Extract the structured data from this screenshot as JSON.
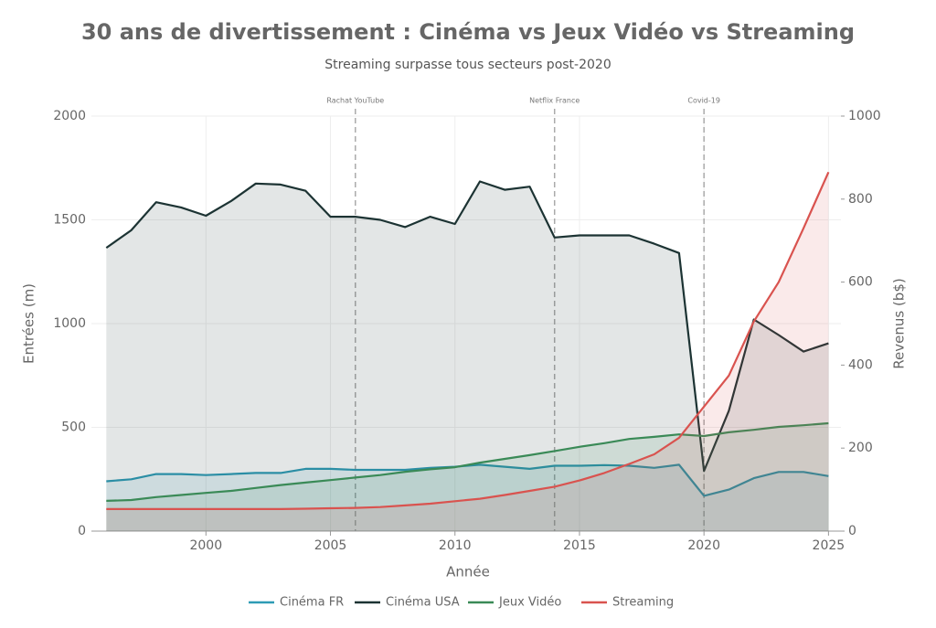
{
  "chart_data": {
    "type": "line",
    "title": "30 ans de divertissement : Cinéma vs Jeux Vidéo vs Streaming",
    "subtitle": "Streaming surpasse tous secteurs post-2020",
    "x_label": "Année",
    "y_label": "Entrées (m)",
    "y2_label": "Revenus (b$)",
    "x": [
      1996,
      1997,
      1998,
      1999,
      2000,
      2001,
      2002,
      2003,
      2004,
      2005,
      2006,
      2007,
      2008,
      2009,
      2010,
      2011,
      2012,
      2013,
      2014,
      2015,
      2016,
      2017,
      2018,
      2019,
      2020,
      2021,
      2022,
      2023,
      2024,
      2025
    ],
    "xlim": [
      1995.4,
      2025.5
    ],
    "xticks": [
      2000,
      2005,
      2010,
      2015,
      2020,
      2025
    ],
    "ylim": [
      0,
      2000
    ],
    "yticks": [
      0,
      500,
      1000,
      1500,
      2000
    ],
    "y2lim": [
      0,
      1000
    ],
    "y2ticks": [
      0,
      200,
      400,
      600,
      800,
      1000
    ],
    "grid": true,
    "fill": true,
    "legend": "bottom",
    "annotations": [
      {
        "x": 2006,
        "text": "Rachat YouTube"
      },
      {
        "x": 2014,
        "text": "Netflix France"
      },
      {
        "x": 2020,
        "text": "Covid-19"
      }
    ],
    "series": [
      {
        "name": "Cinéma FR",
        "color": "#2e9bb5",
        "values": [
          240,
          250,
          275,
          275,
          270,
          275,
          280,
          280,
          300,
          300,
          295,
          295,
          295,
          305,
          310,
          320,
          310,
          300,
          315,
          315,
          318,
          315,
          305,
          320,
          170,
          200,
          255,
          285,
          285,
          265
        ]
      },
      {
        "name": "Cinéma USA",
        "color": "#1c3333",
        "values": [
          1365,
          1450,
          1585,
          1560,
          1520,
          1590,
          1675,
          1670,
          1640,
          1515,
          1515,
          1500,
          1465,
          1515,
          1480,
          1685,
          1645,
          1660,
          1415,
          1425,
          1425,
          1425,
          1385,
          1340,
          290,
          580,
          1020,
          945,
          865,
          905
        ]
      },
      {
        "name": "Jeux Vidéo",
        "color": "#3a8a57",
        "axis": "y2",
        "values": [
          73,
          75,
          82,
          87,
          92,
          97,
          104,
          111,
          117,
          123,
          129,
          135,
          143,
          149,
          154,
          165,
          174,
          183,
          193,
          203,
          212,
          222,
          227,
          233,
          229,
          238,
          244,
          251,
          255,
          260
        ]
      },
      {
        "name": "Streaming",
        "color": "#d9534f",
        "axis": "y2",
        "values": [
          53,
          53,
          53,
          53,
          53,
          53,
          53,
          53,
          54,
          55,
          56,
          58,
          62,
          66,
          72,
          78,
          87,
          97,
          107,
          122,
          140,
          162,
          185,
          225,
          300,
          375,
          505,
          600,
          730,
          865
        ]
      }
    ]
  }
}
